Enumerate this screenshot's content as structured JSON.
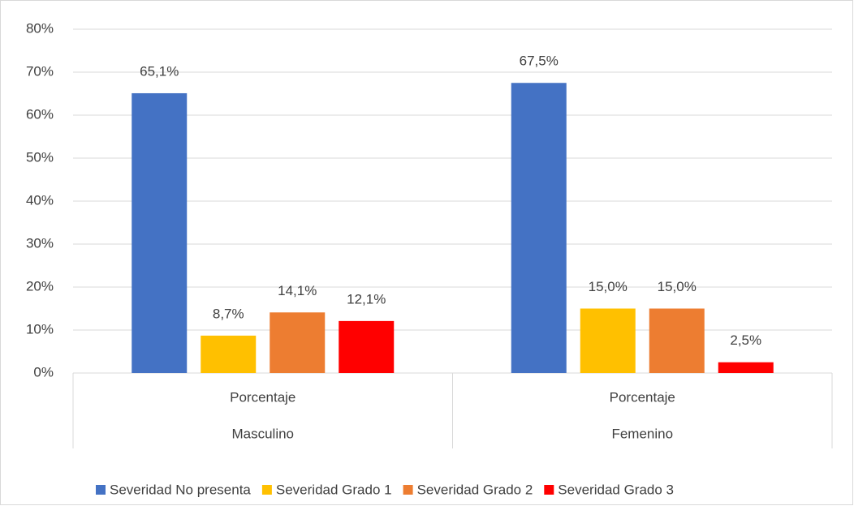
{
  "chart_data": {
    "type": "bar",
    "categories": [
      "Masculino",
      "Femenino"
    ],
    "subcategories": [
      "Porcentaje",
      "Porcentaje"
    ],
    "series": [
      {
        "name": "Severidad No presenta",
        "color": "#4472c4",
        "values": [
          65.1,
          67.5
        ],
        "value_labels": [
          "65,1%",
          "67,5%"
        ]
      },
      {
        "name": "Severidad Grado 1",
        "color": "#ffc000",
        "values": [
          8.7,
          15.0
        ],
        "value_labels": [
          "8,7%",
          "15,0%"
        ]
      },
      {
        "name": "Severidad Grado 2",
        "color": "#ed7d31",
        "values": [
          14.1,
          15.0
        ],
        "value_labels": [
          "14,1%",
          "15,0%"
        ]
      },
      {
        "name": "Severidad Grado 3",
        "color": "#ff0000",
        "values": [
          12.1,
          2.5
        ],
        "value_labels": [
          "12,1%",
          "2,5%"
        ]
      }
    ],
    "ylim": [
      0,
      80
    ],
    "yticks": [
      {
        "value": 0,
        "label": "0%"
      },
      {
        "value": 10,
        "label": "10%"
      },
      {
        "value": 20,
        "label": "20%"
      },
      {
        "value": 30,
        "label": "30%"
      },
      {
        "value": 40,
        "label": "40%"
      },
      {
        "value": 50,
        "label": "50%"
      },
      {
        "value": 60,
        "label": "60%"
      },
      {
        "value": 70,
        "label": "70%"
      },
      {
        "value": 80,
        "label": "80%"
      }
    ],
    "grid": true,
    "legend": "bottom"
  }
}
